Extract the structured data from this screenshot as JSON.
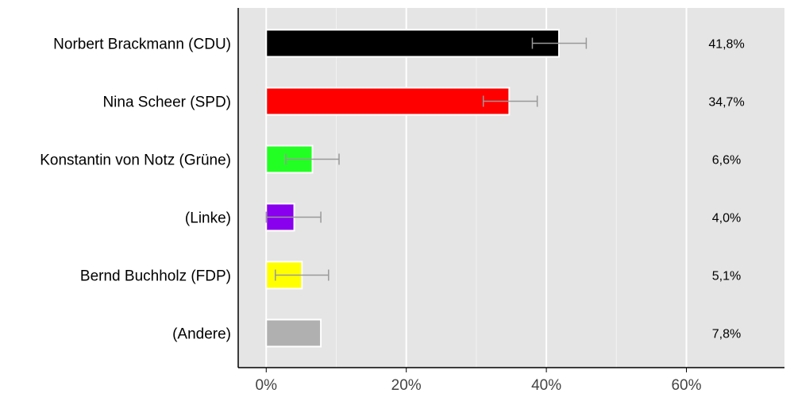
{
  "chart_data": {
    "type": "bar",
    "orientation": "horizontal",
    "categories": [
      "Norbert Brackmann (CDU)",
      "Nina Scheer (SPD)",
      "Konstantin von Notz (Grüne)",
      "(Linke)",
      "Bernd Buchholz (FDP)",
      "(Andere)"
    ],
    "values": [
      41.8,
      34.7,
      6.6,
      4.0,
      5.1,
      7.8
    ],
    "value_labels": [
      "41,8%",
      "34,7%",
      "6,6%",
      "4,0%",
      "5,1%",
      "7,8%"
    ],
    "colors": [
      "#000000",
      "#ff0000",
      "#22ff22",
      "#8800ee",
      "#ffff00",
      "#b0b0b0"
    ],
    "error_bars": [
      [
        38.0,
        45.7
      ],
      [
        31.0,
        38.7
      ],
      [
        2.8,
        10.4
      ],
      [
        0.0,
        7.8
      ],
      [
        1.3,
        8.9
      ],
      null
    ],
    "xlim": [
      -4,
      74
    ],
    "x_ticks": [
      0,
      20,
      40,
      60
    ],
    "x_tick_labels": [
      "0%",
      "20%",
      "40%",
      "60%"
    ],
    "grid": true,
    "background": "#e5e5e5",
    "title": "",
    "xlabel": "",
    "ylabel": ""
  }
}
